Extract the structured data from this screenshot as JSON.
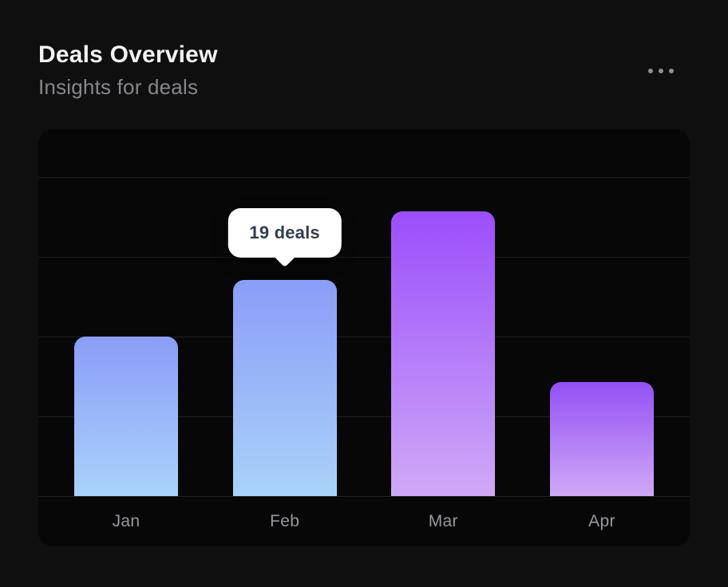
{
  "header": {
    "title": "Deals Overview",
    "subtitle": "Insights for deals"
  },
  "menu": {
    "icon": "ellipsis-icon"
  },
  "chart_data": {
    "type": "bar",
    "title": "Deals Overview",
    "categories": [
      "Jan",
      "Feb",
      "Mar",
      "Apr"
    ],
    "values": [
      14,
      19,
      25,
      10
    ],
    "unit": "deals",
    "xlabel": "",
    "ylabel": "",
    "ylim": [
      0,
      28
    ],
    "grid": true,
    "legend": false,
    "tooltip": {
      "index": 1,
      "category": "Feb",
      "label": "19 deals"
    },
    "bar_gradients": [
      {
        "from": "#8B9DF8",
        "to": "#A9D3F9"
      },
      {
        "from": "#8B9DF8",
        "to": "#A9D3F9"
      },
      {
        "from": "#9B4EFB",
        "to": "#CFA9F6"
      },
      {
        "from": "#9450F5",
        "to": "#CFA9F6"
      }
    ]
  },
  "colors": {
    "page_bg": "#0F0F10",
    "panel_bg": "#070708",
    "gridline": "#1F1F21",
    "title_text": "#F2F2F3",
    "subtitle_text": "#86868B",
    "axis_label_text": "#98989D",
    "menu_dots": "#8E8E93",
    "tooltip_bg": "#FFFFFF",
    "tooltip_text": "#333D4E"
  }
}
